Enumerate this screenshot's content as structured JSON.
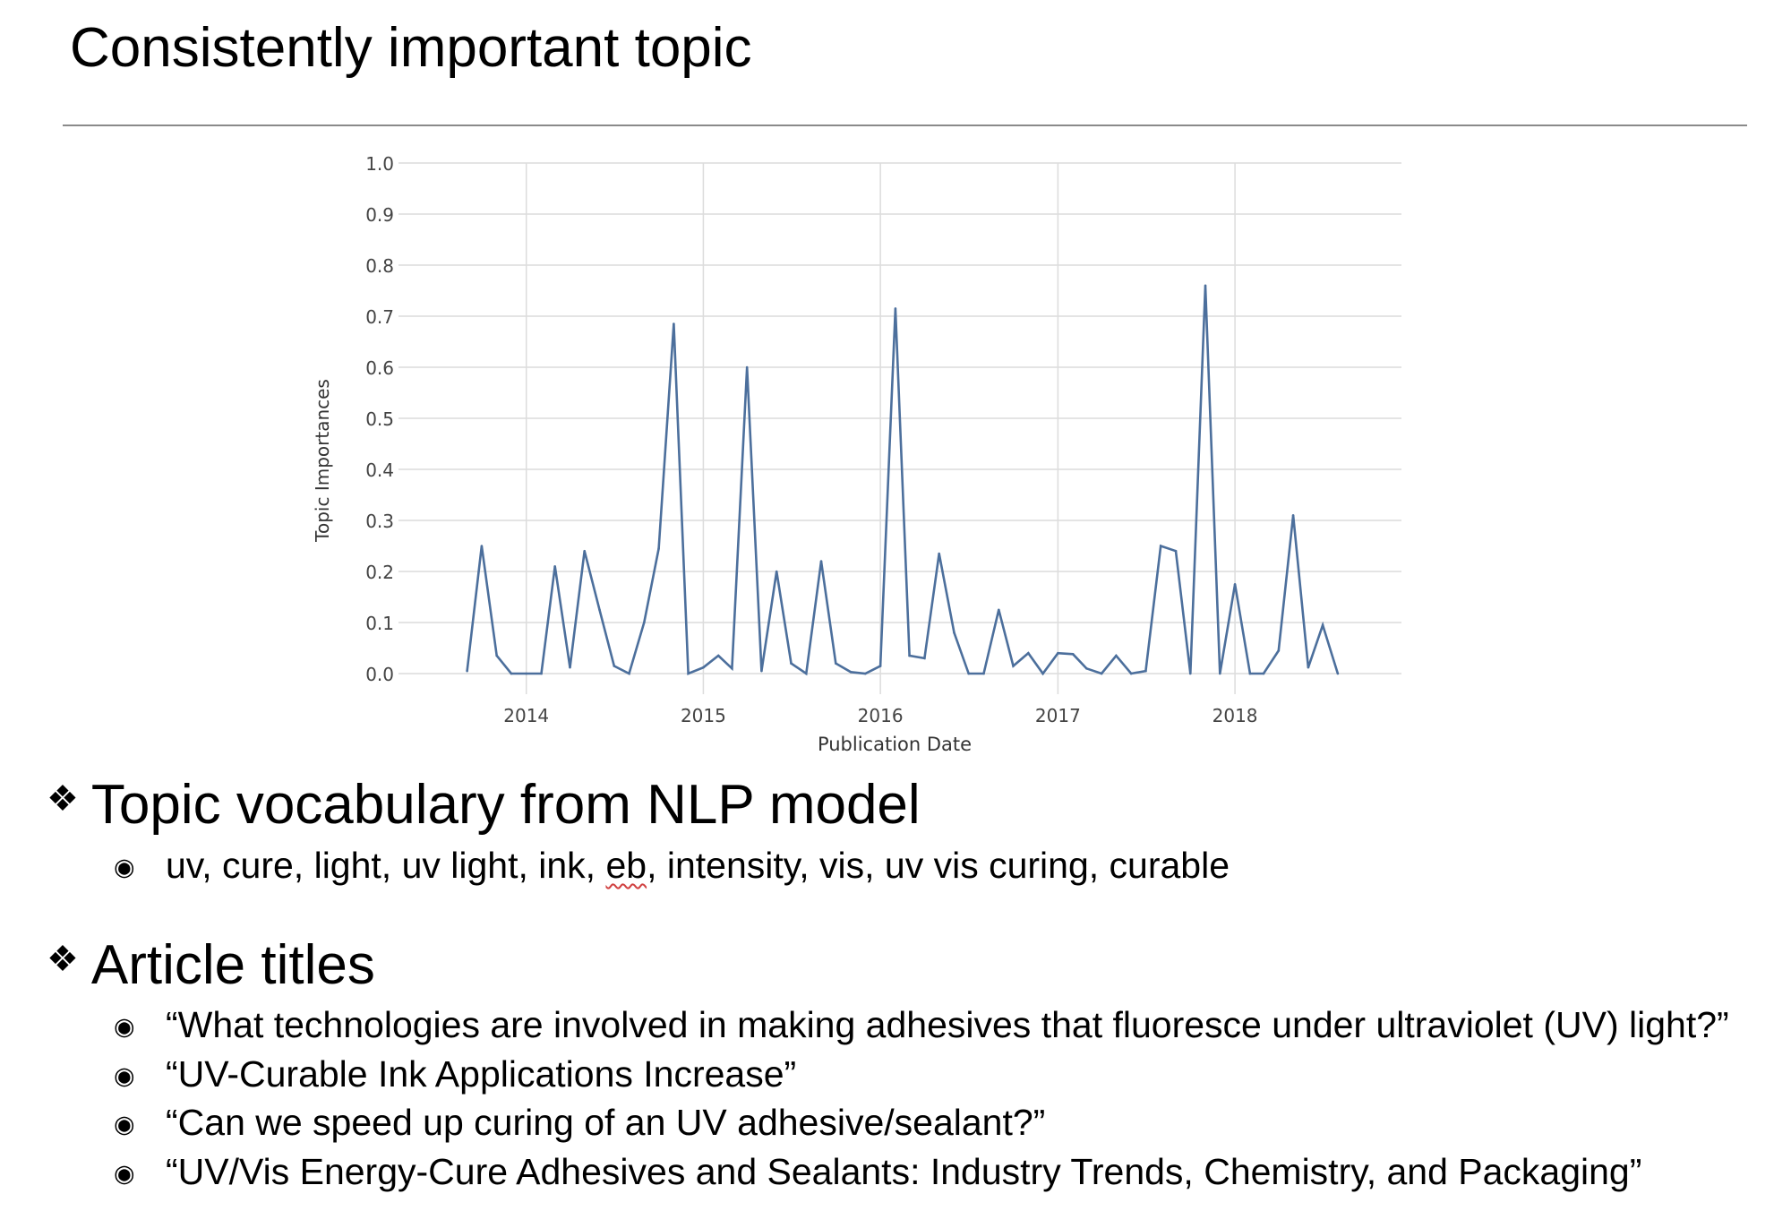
{
  "slide": {
    "title_fragment": "",
    "subtitle": "Consistently important topic"
  },
  "sections": [
    {
      "heading": "Topic vocabulary from NLP model",
      "items": [
        "uv, cure, light, uv light, ink, eb, intensity, vis, uv vis curing, curable"
      ]
    },
    {
      "heading": "Article titles",
      "items": [
        "“What technologies are involved in making adhesives that fluoresce under ultraviolet (UV) light?”",
        "“UV-Curable Ink Applications Increase”",
        "“Can we speed up curing of an UV adhesive/sealant?”",
        "“UV/Vis Energy-Cure Adhesives and Sealants: Industry Trends, Chemistry, and Packaging”"
      ]
    }
  ],
  "chart_data": {
    "type": "line",
    "title": "",
    "xlabel": "Publication Date",
    "ylabel": "Topic Importances",
    "xlim": [
      "2013-05-01",
      "2018-12-01"
    ],
    "ylim": [
      0.0,
      1.0
    ],
    "yticks": [
      0.0,
      0.1,
      0.2,
      0.3,
      0.4,
      0.5,
      0.6,
      0.7,
      0.8,
      0.9,
      1.0
    ],
    "xticks": [
      "2014",
      "2015",
      "2016",
      "2017",
      "2018"
    ],
    "grid": true,
    "color": "#4c6f9c",
    "series": [
      {
        "x": [
          "2013-09-01",
          "2013-10-01",
          "2013-11-01",
          "2013-12-01",
          "2014-01-01",
          "2014-02-01",
          "2014-03-01",
          "2014-04-01",
          "2014-05-01",
          "2014-06-01",
          "2014-07-01",
          "2014-08-01",
          "2014-09-01",
          "2014-10-01",
          "2014-11-01",
          "2014-12-01",
          "2015-01-01",
          "2015-02-01",
          "2015-03-01",
          "2015-04-01",
          "2015-05-01",
          "2015-06-01",
          "2015-07-01",
          "2015-08-01",
          "2015-09-01",
          "2015-10-01",
          "2015-11-01",
          "2015-12-01",
          "2016-01-01",
          "2016-02-01",
          "2016-03-01",
          "2016-04-01",
          "2016-05-01",
          "2016-06-01",
          "2016-07-01",
          "2016-08-01",
          "2016-09-01",
          "2016-10-01",
          "2016-11-01",
          "2016-12-01",
          "2017-01-01",
          "2017-02-01",
          "2017-03-01",
          "2017-04-01",
          "2017-05-01",
          "2017-06-01",
          "2017-07-01",
          "2017-08-01",
          "2017-09-01",
          "2017-10-01",
          "2017-11-01",
          "2017-12-01",
          "2018-01-01",
          "2018-02-01",
          "2018-03-01",
          "2018-04-01",
          "2018-05-01",
          "2018-06-01",
          "2018-07-01",
          "2018-08-01"
        ],
        "values": [
          0.005,
          0.25,
          0.035,
          0.0,
          0.0,
          0.0,
          0.21,
          0.012,
          0.24,
          0.125,
          0.015,
          0.0,
          0.1,
          0.245,
          0.685,
          0.0,
          0.012,
          0.035,
          0.01,
          0.6,
          0.005,
          0.2,
          0.02,
          0.0,
          0.22,
          0.02,
          0.003,
          0.0,
          0.015,
          0.715,
          0.035,
          0.03,
          0.235,
          0.08,
          0.0,
          0.0,
          0.125,
          0.015,
          0.04,
          0.0,
          0.04,
          0.038,
          0.01,
          0.0,
          0.035,
          0.0,
          0.005,
          0.25,
          0.24,
          0.0,
          0.76,
          0.0,
          0.175,
          0.0,
          0.0,
          0.045,
          0.31,
          0.012,
          0.095,
          0.0
        ]
      }
    ]
  }
}
